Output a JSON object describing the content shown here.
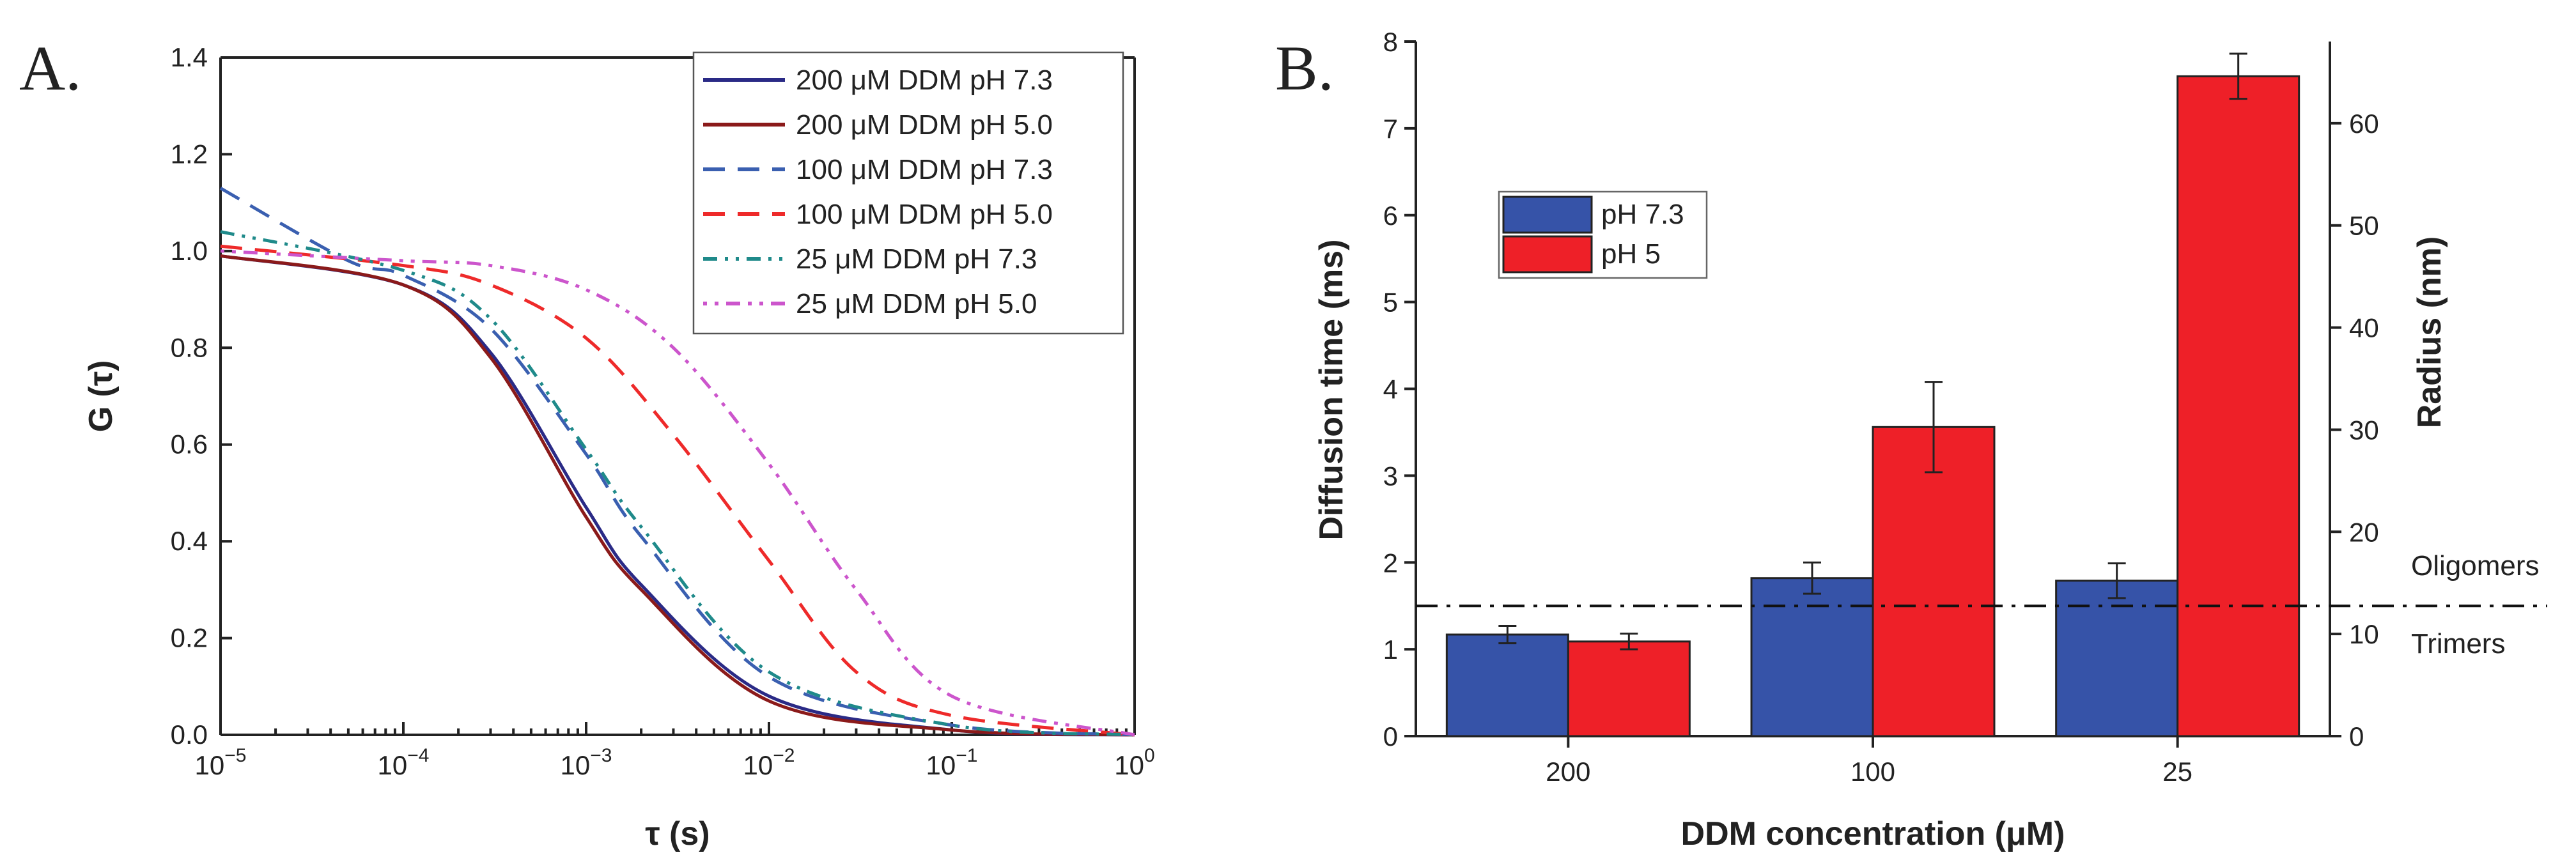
{
  "panels": {
    "a_label": "A.",
    "b_label": "B."
  },
  "chart_data": [
    {
      "type": "line",
      "panel": "A",
      "xscale": "log",
      "xlim": [
        1e-05,
        1
      ],
      "ylim": [
        0,
        1.4
      ],
      "xlabel": "τ (s)",
      "ylabel": "G (τ)",
      "x_ticks": [
        {
          "base": "10",
          "exp": "−5"
        },
        {
          "base": "10",
          "exp": "−4"
        },
        {
          "base": "10",
          "exp": "−3"
        },
        {
          "base": "10",
          "exp": "−2"
        },
        {
          "base": "10",
          "exp": "−1"
        },
        {
          "base": "10",
          "exp": "0"
        }
      ],
      "y_ticks": [
        "0.0",
        "0.2",
        "0.4",
        "0.6",
        "0.8",
        "1.0",
        "1.2",
        "1.4"
      ],
      "series": [
        {
          "name": "200 μM DDM pH 7.3",
          "color": "#2a2a86",
          "dash": "solid",
          "x": [
            1e-05,
            0.0001,
            0.0003,
            0.001,
            0.002,
            0.01,
            0.1,
            1
          ],
          "y": [
            0.99,
            0.93,
            0.79,
            0.47,
            0.31,
            0.08,
            0.01,
            0.0
          ]
        },
        {
          "name": "200 μM DDM pH 5.0",
          "color": "#8b1a1a",
          "dash": "solid",
          "x": [
            1e-05,
            0.0001,
            0.0003,
            0.001,
            0.002,
            0.01,
            0.1,
            1
          ],
          "y": [
            0.99,
            0.93,
            0.78,
            0.45,
            0.3,
            0.07,
            0.01,
            0.0
          ]
        },
        {
          "name": "100 μM DDM pH 7.3",
          "color": "#3a5fb0",
          "dash": "dash",
          "x": [
            1e-05,
            5e-05,
            0.0001,
            0.0003,
            0.001,
            0.002,
            0.01,
            0.1,
            1
          ],
          "y": [
            1.13,
            0.98,
            0.95,
            0.84,
            0.58,
            0.41,
            0.12,
            0.02,
            0.0
          ]
        },
        {
          "name": "100 μM DDM pH 5.0",
          "color": "#ee2a2a",
          "dash": "dash",
          "x": [
            1e-05,
            0.0001,
            0.0003,
            0.001,
            0.003,
            0.01,
            0.03,
            0.1,
            1
          ],
          "y": [
            1.01,
            0.97,
            0.93,
            0.82,
            0.62,
            0.36,
            0.13,
            0.04,
            0.0
          ]
        },
        {
          "name": "25 μM DDM pH 7.3",
          "color": "#1f8a8a",
          "dash": "dashdotdot",
          "x": [
            1e-05,
            0.0001,
            0.0003,
            0.001,
            0.002,
            0.01,
            0.1,
            1
          ],
          "y": [
            1.04,
            0.96,
            0.86,
            0.59,
            0.43,
            0.13,
            0.02,
            0.0
          ]
        },
        {
          "name": "25 μM DDM pH 5.0",
          "color": "#cc55cc",
          "dash": "dotdash",
          "x": [
            1e-05,
            0.0001,
            0.0003,
            0.001,
            0.003,
            0.01,
            0.03,
            0.1,
            1
          ],
          "y": [
            1.0,
            0.98,
            0.97,
            0.92,
            0.8,
            0.56,
            0.3,
            0.08,
            0.0
          ]
        }
      ]
    },
    {
      "type": "bar",
      "panel": "B",
      "xlabel": "DDM concentration (μM)",
      "ylabel": "Diffusion time (ms)",
      "ylabel_right": "Radius (nm)",
      "categories": [
        "200",
        "100",
        "25"
      ],
      "ylim": [
        0,
        8
      ],
      "ylim_right": [
        0,
        68
      ],
      "y_ticks": [
        "0",
        "1",
        "2",
        "3",
        "4",
        "5",
        "6",
        "7",
        "8"
      ],
      "y_ticks_right": [
        "0",
        "10",
        "20",
        "30",
        "40",
        "50",
        "60"
      ],
      "series": [
        {
          "name": "pH 7.3",
          "color": "#3653a8",
          "values": [
            1.17,
            1.82,
            1.79
          ],
          "errors": [
            0.1,
            0.18,
            0.2
          ]
        },
        {
          "name": "pH 5",
          "color": "#ee2028",
          "values": [
            1.09,
            3.56,
            7.6
          ],
          "errors": [
            0.09,
            0.52,
            0.26
          ]
        }
      ],
      "reference_line": {
        "value": 1.5,
        "label_above": "Oligomers",
        "label_below": "Trimers"
      }
    }
  ]
}
